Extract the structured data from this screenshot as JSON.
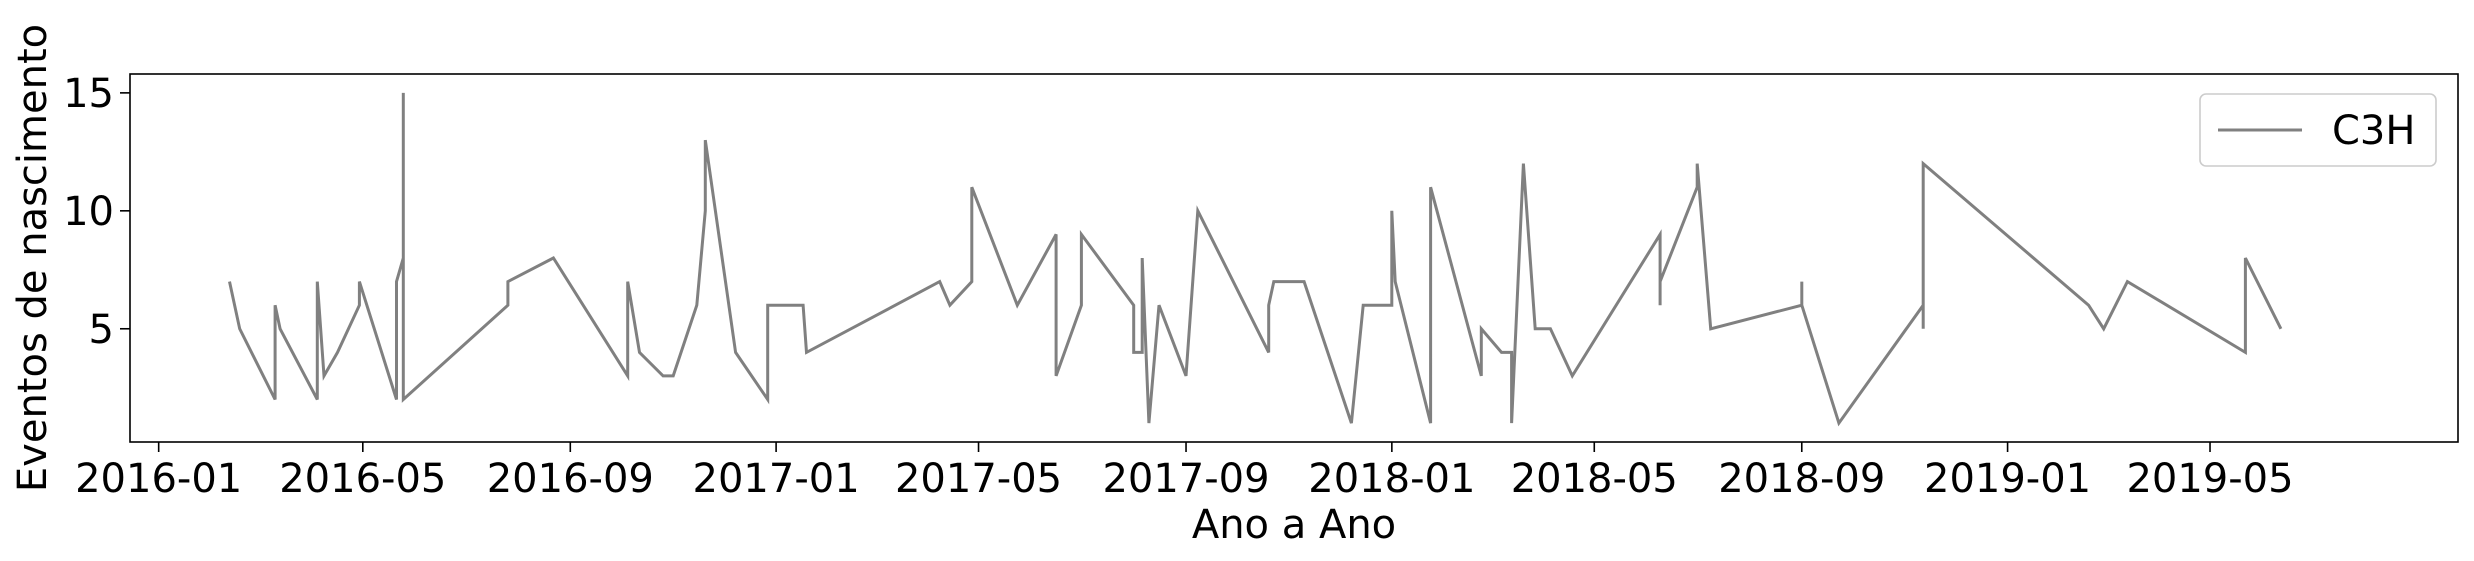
{
  "chart_data": {
    "type": "line",
    "xlabel": "Ano a Ano",
    "ylabel": "Eventos de nascimento",
    "xlim": [
      "2015-12-15",
      "2019-09-25"
    ],
    "ylim": [
      0.2,
      15.8
    ],
    "grid": false,
    "legend_placement": "top-right",
    "x_ticks": [
      "2016-01",
      "2016-05",
      "2016-09",
      "2017-01",
      "2017-05",
      "2017-09",
      "2018-01",
      "2018-05",
      "2018-09",
      "2019-01",
      "2019-05"
    ],
    "y_ticks": [
      5,
      10,
      15
    ],
    "series": [
      {
        "name": "C3H",
        "color": "#808080",
        "points": [
          [
            "2016-02-12",
            7
          ],
          [
            "2016-02-18",
            5
          ],
          [
            "2016-03-10",
            2
          ],
          [
            "2016-03-10",
            6
          ],
          [
            "2016-03-13",
            5
          ],
          [
            "2016-04-04",
            2
          ],
          [
            "2016-04-04",
            7
          ],
          [
            "2016-04-08",
            3
          ],
          [
            "2016-04-16",
            4
          ],
          [
            "2016-04-29",
            6
          ],
          [
            "2016-04-29",
            7
          ],
          [
            "2016-05-21",
            2
          ],
          [
            "2016-05-21",
            7
          ],
          [
            "2016-05-25",
            8
          ],
          [
            "2016-05-25",
            15
          ],
          [
            "2016-05-25",
            2
          ],
          [
            "2016-07-26",
            6
          ],
          [
            "2016-07-26",
            7
          ],
          [
            "2016-08-22",
            8
          ],
          [
            "2016-10-05",
            3
          ],
          [
            "2016-10-05",
            7
          ],
          [
            "2016-10-12",
            4
          ],
          [
            "2016-10-26",
            3
          ],
          [
            "2016-11-01",
            3
          ],
          [
            "2016-11-15",
            6
          ],
          [
            "2016-11-20",
            10
          ],
          [
            "2016-11-20",
            13
          ],
          [
            "2016-12-08",
            4
          ],
          [
            "2016-12-27",
            2
          ],
          [
            "2016-12-27",
            6
          ],
          [
            "2017-01-17",
            6
          ],
          [
            "2017-01-19",
            4
          ],
          [
            "2017-04-08",
            7
          ],
          [
            "2017-04-14",
            6
          ],
          [
            "2017-04-27",
            7
          ],
          [
            "2017-04-27",
            11
          ],
          [
            "2017-05-24",
            6
          ],
          [
            "2017-06-16",
            9
          ],
          [
            "2017-06-16",
            3
          ],
          [
            "2017-07-01",
            6
          ],
          [
            "2017-07-01",
            9
          ],
          [
            "2017-08-01",
            6
          ],
          [
            "2017-08-01",
            4
          ],
          [
            "2017-08-06",
            4
          ],
          [
            "2017-08-06",
            8
          ],
          [
            "2017-08-10",
            1
          ],
          [
            "2017-08-16",
            6
          ],
          [
            "2017-09-01",
            3
          ],
          [
            "2017-09-08",
            10
          ],
          [
            "2017-10-20",
            4
          ],
          [
            "2017-10-20",
            6
          ],
          [
            "2017-10-23",
            7
          ],
          [
            "2017-11-10",
            7
          ],
          [
            "2017-12-08",
            1
          ],
          [
            "2017-12-15",
            6
          ],
          [
            "2018-01-01",
            6
          ],
          [
            "2018-01-01",
            10
          ],
          [
            "2018-01-03",
            7
          ],
          [
            "2018-01-24",
            1
          ],
          [
            "2018-01-24",
            11
          ],
          [
            "2018-02-23",
            3
          ],
          [
            "2018-02-23",
            5
          ],
          [
            "2018-03-07",
            4
          ],
          [
            "2018-03-13",
            4
          ],
          [
            "2018-03-13",
            1
          ],
          [
            "2018-03-20",
            12
          ],
          [
            "2018-03-27",
            5
          ],
          [
            "2018-04-05",
            5
          ],
          [
            "2018-04-18",
            3
          ],
          [
            "2018-06-09",
            9
          ],
          [
            "2018-06-09",
            6
          ],
          [
            "2018-06-09",
            7
          ],
          [
            "2018-07-01",
            11
          ],
          [
            "2018-07-01",
            12
          ],
          [
            "2018-07-09",
            5
          ],
          [
            "2018-09-01",
            6
          ],
          [
            "2018-09-01",
            7
          ],
          [
            "2018-09-01",
            6
          ],
          [
            "2018-09-23",
            1
          ],
          [
            "2018-11-12",
            6
          ],
          [
            "2018-11-12",
            5
          ],
          [
            "2018-11-12",
            12
          ],
          [
            "2019-02-18",
            6
          ],
          [
            "2019-02-27",
            5
          ],
          [
            "2019-03-13",
            7
          ],
          [
            "2019-05-22",
            4
          ],
          [
            "2019-05-22",
            8
          ],
          [
            "2019-06-12",
            5
          ]
        ]
      }
    ]
  }
}
